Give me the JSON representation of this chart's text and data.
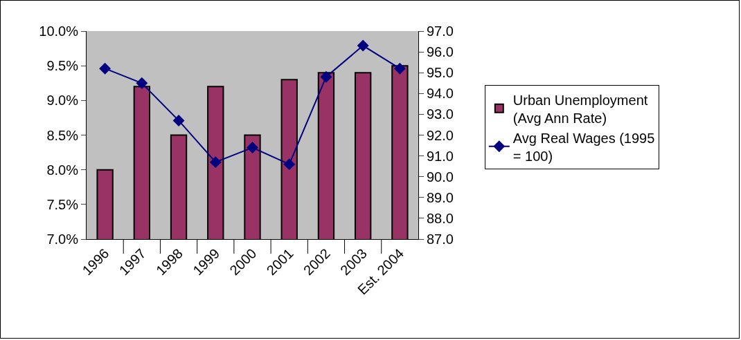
{
  "chart_data": {
    "type": "bar",
    "categories": [
      "1996",
      "1997",
      "1998",
      "1999",
      "2000",
      "2001",
      "2002",
      "2003",
      "Est. 2004"
    ],
    "series": [
      {
        "name": "Urban Unemployment (Avg Ann Rate)",
        "color": "#993366",
        "values": [
          8.0,
          9.2,
          8.5,
          9.2,
          8.5,
          9.3,
          9.4,
          9.4,
          9.5
        ]
      },
      {
        "name": "Avg Real Wages (1995 = 100)",
        "type": "line",
        "axis": "y2",
        "color": "#000080",
        "marker": "diamond",
        "values": [
          95.2,
          94.5,
          92.7,
          90.7,
          91.4,
          90.6,
          94.8,
          96.3,
          95.2
        ]
      }
    ],
    "ylim": [
      7,
      10
    ],
    "yticks": [
      {
        "value": 7,
        "label": "7.0%"
      },
      {
        "value": 7.5,
        "label": "7.5%"
      },
      {
        "value": 8,
        "label": "8.0%"
      },
      {
        "value": 8.5,
        "label": "8.5%"
      },
      {
        "value": 9,
        "label": "9.0%"
      },
      {
        "value": 9.5,
        "label": "9.5%"
      },
      {
        "value": 10,
        "label": "10.0%"
      }
    ],
    "y2lim": [
      87,
      97
    ],
    "y2ticks": [
      {
        "value": 87,
        "label": "87.0"
      },
      {
        "value": 88,
        "label": "88.0"
      },
      {
        "value": 89,
        "label": "89.0"
      },
      {
        "value": 90,
        "label": "90.0"
      },
      {
        "value": 91,
        "label": "91.0"
      },
      {
        "value": 92,
        "label": "92.0"
      },
      {
        "value": 93,
        "label": "93.0"
      },
      {
        "value": 94,
        "label": "94.0"
      },
      {
        "value": 95,
        "label": "95.0"
      },
      {
        "value": 96,
        "label": "96.0"
      },
      {
        "value": 97,
        "label": "97.0"
      }
    ],
    "grid": false,
    "legend": "right"
  }
}
